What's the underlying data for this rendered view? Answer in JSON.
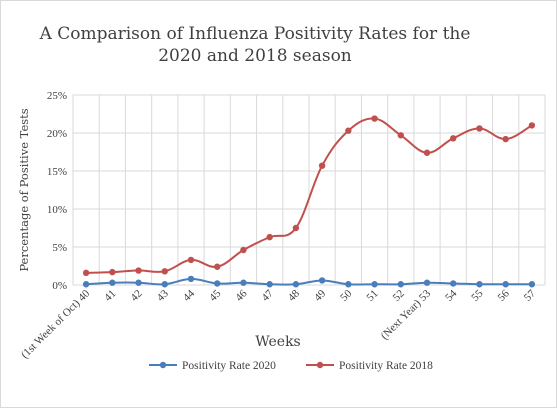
{
  "chart_data": {
    "type": "line",
    "title_line1": "A Comparison of Influenza Positivity Rates for the",
    "title_line2": "2020 and 2018 season",
    "xlabel": "Weeks",
    "ylabel": "Percentage  of Positive Tests",
    "categories": [
      "(1st Week of Oct) 40",
      "41",
      "42",
      "43",
      "44",
      "45",
      "46",
      "47",
      "48",
      "49",
      "50",
      "51",
      "52",
      "(Next Year) 53",
      "54",
      "55",
      "56",
      "57"
    ],
    "ylim": [
      0,
      25
    ],
    "yticks": [
      "0%",
      "5%",
      "10%",
      "15%",
      "20%",
      "25%"
    ],
    "grid": true,
    "legend_position": "bottom",
    "series": [
      {
        "name": "Positivity Rate 2020",
        "color": "#4a7ebb",
        "values": [
          0.1,
          0.3,
          0.3,
          0.1,
          0.8,
          0.2,
          0.3,
          0.1,
          0.1,
          0.6,
          0.1,
          0.1,
          0.1,
          0.3,
          0.2,
          0.1,
          0.1,
          0.1
        ]
      },
      {
        "name": "Positivity Rate 2018",
        "color": "#c0504d",
        "values": [
          1.6,
          1.7,
          1.9,
          1.8,
          3.3,
          2.4,
          4.6,
          6.3,
          7.5,
          15.7,
          20.3,
          21.9,
          19.7,
          17.4,
          19.3,
          20.6,
          19.2,
          21.0
        ]
      }
    ]
  }
}
